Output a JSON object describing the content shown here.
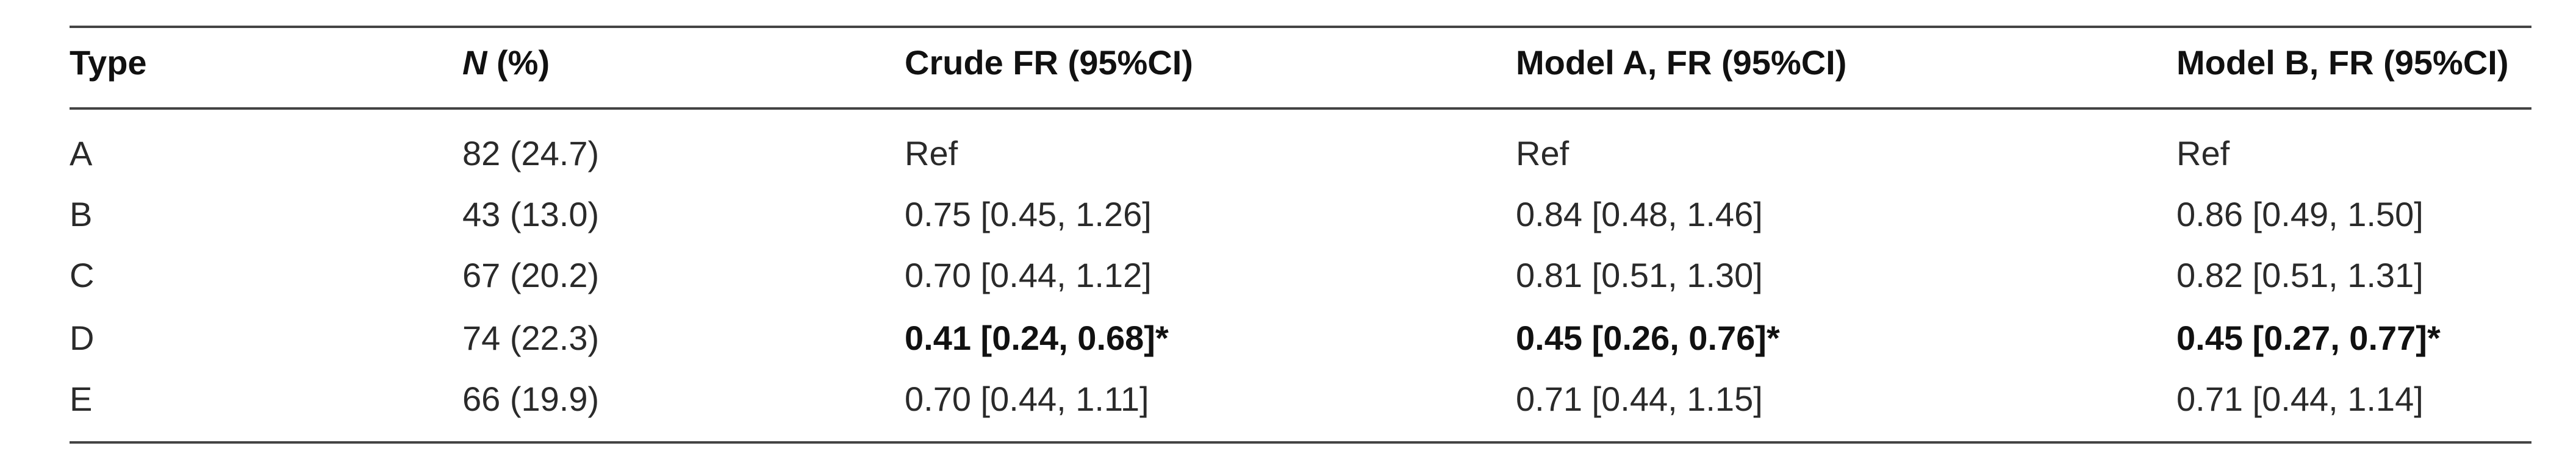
{
  "table": {
    "headers": [
      "Type",
      "N",
      " (%)",
      "Crude FR (95%CI)",
      "Model A, FR (95%CI)",
      "Model B, FR (95%CI)"
    ],
    "rows": [
      {
        "type": "A",
        "n": "82 (24.7)",
        "crude": "Ref",
        "model_a": "Ref",
        "model_b": "Ref",
        "bold": false
      },
      {
        "type": "B",
        "n": "43 (13.0)",
        "crude": "0.75 [0.45, 1.26]",
        "model_a": "0.84 [0.48, 1.46]",
        "model_b": "0.86 [0.49, 1.50]",
        "bold": false
      },
      {
        "type": "C",
        "n": "67 (20.2)",
        "crude": "0.70 [0.44, 1.12]",
        "model_a": "0.81 [0.51, 1.30]",
        "model_b": "0.82 [0.51, 1.31]",
        "bold": false
      },
      {
        "type": "D",
        "n": "74 (22.3)",
        "crude": "0.41 [0.24, 0.68]*",
        "model_a": "0.45 [0.26, 0.76]*",
        "model_b": "0.45 [0.27, 0.77]*",
        "bold": true
      },
      {
        "type": "E",
        "n": "66 (19.9)",
        "crude": "0.70 [0.44, 1.11]",
        "model_a": "0.71 [0.44, 1.15]",
        "model_b": "0.71 [0.44, 1.14]",
        "bold": false
      }
    ]
  }
}
